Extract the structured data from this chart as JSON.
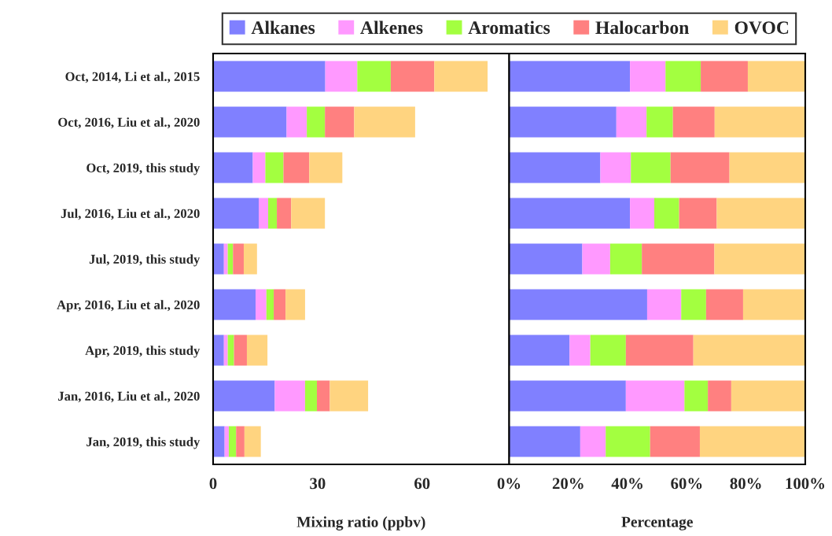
{
  "chart_data": [
    {
      "type": "bar",
      "orientation": "horizontal",
      "stacked": true,
      "xlabel": "Mixing ratio (ppbv)",
      "legend": "top",
      "categories": [
        "Oct, 2014, Li et al., 2015",
        "Oct, 2016, Liu et al., 2020",
        "Oct, 2019, this study",
        "Jul, 2016, Liu et al., 2020",
        "Jul, 2019, this study",
        "Apr, 2016, Liu et al., 2020",
        "Apr, 2019, this study",
        "Jan, 2016, Liu et al., 2020",
        "Jan, 2019, this study"
      ],
      "xlim": [
        0,
        85
      ],
      "xticks": [
        0,
        30,
        60
      ],
      "series": [
        {
          "name": "Alkanes",
          "color": "#8080ff",
          "values": [
            32.2,
            21.1,
            11.4,
            13.1,
            3.1,
            12.2,
            3.1,
            17.7,
            3.3
          ]
        },
        {
          "name": "Alkenes",
          "color": "#ff99ff",
          "values": [
            9.2,
            5.8,
            3.6,
            2.7,
            1.1,
            3.1,
            1.1,
            8.7,
            1.2
          ]
        },
        {
          "name": "Aromatics",
          "color": "#a3ff40",
          "values": [
            9.6,
            5.2,
            5.2,
            2.5,
            1.5,
            2.1,
            1.8,
            3.4,
            2.1
          ]
        },
        {
          "name": "Halocarbon",
          "color": "#ff8080",
          "values": [
            12.5,
            8.4,
            7.4,
            4.1,
            3.1,
            3.4,
            3.7,
            3.7,
            2.4
          ]
        },
        {
          "name": "OVOC",
          "color": "#ffd480",
          "values": [
            15.3,
            17.5,
            9.5,
            9.7,
            3.8,
            5.6,
            5.9,
            11.0,
            4.7
          ]
        }
      ]
    },
    {
      "type": "bar",
      "orientation": "horizontal",
      "stacked": true,
      "xlabel": "Percentage",
      "tick_labels": "x",
      "categories": [
        null,
        null,
        null,
        null,
        null,
        null,
        null,
        null,
        null
      ],
      "xlim": [
        0,
        100
      ],
      "xticks": [
        {
          "value": 0,
          "label": "0%"
        },
        {
          "value": 20,
          "label": "20%"
        },
        {
          "value": 40,
          "label": "40%"
        },
        {
          "value": 60,
          "label": "60%"
        },
        {
          "value": 80,
          "label": "80%"
        },
        {
          "value": 100,
          "label": "100%"
        }
      ],
      "series": [
        {
          "color": "#8080ff",
          "values": [
            40.8,
            36.2,
            30.8,
            40.8,
            24.7,
            46.6,
            20.4,
            39.4,
            24.0
          ]
        },
        {
          "color": "#ff99ff",
          "values": [
            12.0,
            10.2,
            10.3,
            8.2,
            9.4,
            11.5,
            7.0,
            19.8,
            8.6
          ]
        },
        {
          "color": "#a3ff40",
          "values": [
            11.9,
            8.9,
            13.4,
            8.4,
            10.7,
            8.4,
            12.0,
            7.9,
            15.0
          ]
        },
        {
          "color": "#ff8080",
          "values": [
            15.9,
            14.1,
            19.9,
            12.7,
            24.5,
            12.5,
            22.8,
            7.9,
            16.8
          ]
        },
        {
          "color": "#ffd480",
          "values": [
            19.4,
            30.6,
            25.6,
            29.9,
            30.7,
            21.0,
            37.8,
            25.0,
            35.6
          ]
        }
      ]
    }
  ]
}
